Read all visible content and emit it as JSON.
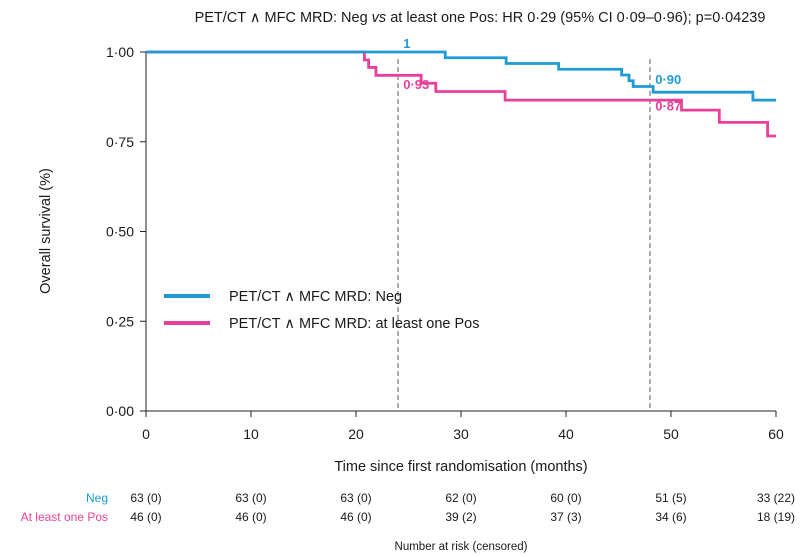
{
  "chart_data": {
    "type": "line",
    "subtype": "kaplan-meier step",
    "title": {
      "pre": "PET/CT ∧ MFC MRD: Neg ",
      "italic": "vs",
      "post": " at least one Pos: HR 0·29 (95% CI 0·09–0·96); p=0·04239"
    },
    "xlabel": "Time since first randomisation (months)",
    "ylabel": "Overall survival (%)",
    "xlim": [
      0,
      60
    ],
    "ylim": [
      0,
      1
    ],
    "x_ticks": [
      0,
      10,
      20,
      30,
      40,
      50,
      60
    ],
    "x_tick_labels": [
      "0",
      "10",
      "20",
      "30",
      "40",
      "50",
      "60"
    ],
    "y_ticks": [
      0,
      0.25,
      0.5,
      0.75,
      1.0
    ],
    "y_tick_labels": [
      "0·00",
      "0·25",
      "0·50",
      "0·75",
      "1·00"
    ],
    "reference_lines_x": [
      24,
      48
    ],
    "legend_position": "center-left",
    "series": [
      {
        "name": "PET/CT ∧ MFC MRD: Neg",
        "color": "#1f9ad6",
        "steps": [
          [
            0,
            1.0
          ],
          [
            28.5,
            0.984
          ],
          [
            34.3,
            0.968
          ],
          [
            39.3,
            0.952
          ],
          [
            45.3,
            0.936
          ],
          [
            46.0,
            0.92
          ],
          [
            46.4,
            0.904
          ],
          [
            48.3,
            0.888
          ],
          [
            57.8,
            0.866
          ],
          [
            60,
            0.866
          ]
        ]
      },
      {
        "name": "PET/CT ∧ MFC MRD: at least one Pos",
        "color": "#e8409a",
        "steps": [
          [
            0,
            1.0
          ],
          [
            20.8,
            0.978
          ],
          [
            21.2,
            0.957
          ],
          [
            21.9,
            0.935
          ],
          [
            26.2,
            0.913
          ],
          [
            27.6,
            0.89
          ],
          [
            34.2,
            0.866
          ],
          [
            51.0,
            0.838
          ],
          [
            54.6,
            0.804
          ],
          [
            59.2,
            0.766
          ],
          [
            60,
            0.766
          ]
        ]
      }
    ],
    "annotations": [
      {
        "text": "1",
        "x": 24.5,
        "y": 1.0,
        "series": 0
      },
      {
        "text": "0·90",
        "x": 48.5,
        "y": 0.9,
        "series": 0
      },
      {
        "text": "0·93",
        "x": 24.5,
        "y": 0.93,
        "series": 1
      },
      {
        "text": "0·87",
        "x": 48.5,
        "y": 0.87,
        "series": 1
      }
    ],
    "risk_table": {
      "title": "Number at risk (censored)",
      "times": [
        0,
        10,
        20,
        30,
        40,
        50,
        60
      ],
      "rows": [
        {
          "label": "Neg",
          "color": "#1f9ad6",
          "values": [
            "63 (0)",
            "63 (0)",
            "63 (0)",
            "62 (0)",
            "60 (0)",
            "51 (5)",
            "33 (22)"
          ]
        },
        {
          "label": "At least one Pos",
          "color": "#e8409a",
          "values": [
            "46 (0)",
            "46 (0)",
            "46 (0)",
            "39 (2)",
            "37 (3)",
            "34 (6)",
            "18 (19)"
          ]
        }
      ]
    }
  }
}
